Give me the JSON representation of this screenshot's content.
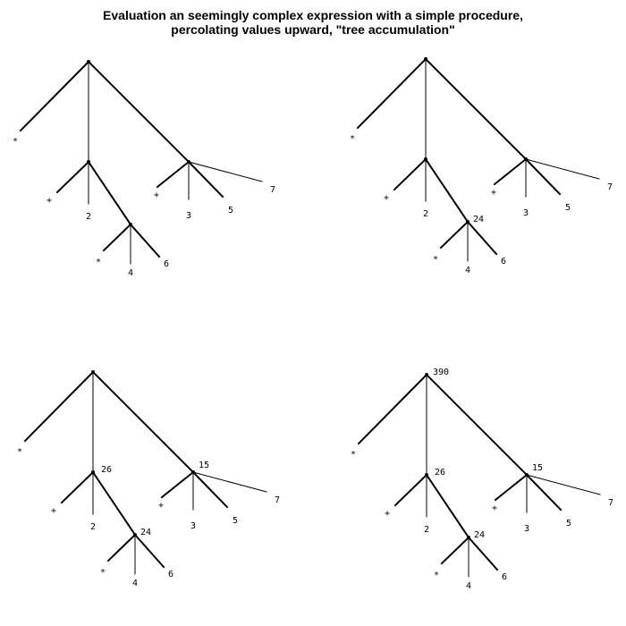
{
  "title": {
    "line1": "Evaluation an seemingly complex expression with a simple procedure,",
    "line2": "percolating values upward, \"tree accumulation\""
  },
  "colors": {
    "ink": "#000000",
    "background": "#ffffff"
  },
  "panels": [
    {
      "step": 1,
      "labels": {
        "root_op": "*",
        "sum1_op": "+",
        "sum1_a": "2",
        "prod_op": "*",
        "prod_a": "4",
        "prod_b": "6",
        "sum2_op": "+",
        "sum2_a": "3",
        "sum2_b": "5",
        "sum2_c": "7"
      },
      "values": {
        "root": "",
        "sum1": "",
        "prod": "",
        "sum2": ""
      }
    },
    {
      "step": 2,
      "labels": {
        "root_op": "*",
        "sum1_op": "+",
        "sum1_a": "2",
        "prod_op": "*",
        "prod_a": "4",
        "prod_b": "6",
        "sum2_op": "+",
        "sum2_a": "3",
        "sum2_b": "5",
        "sum2_c": "7"
      },
      "values": {
        "root": "",
        "sum1": "",
        "prod": "24",
        "sum2": ""
      }
    },
    {
      "step": 3,
      "labels": {
        "root_op": "*",
        "sum1_op": "+",
        "sum1_a": "2",
        "prod_op": "*",
        "prod_a": "4",
        "prod_b": "6",
        "sum2_op": "+",
        "sum2_a": "3",
        "sum2_b": "5",
        "sum2_c": "7"
      },
      "values": {
        "root": "",
        "sum1": "26",
        "prod": "24",
        "sum2": "15"
      }
    },
    {
      "step": 4,
      "labels": {
        "root_op": "*",
        "sum1_op": "+",
        "sum1_a": "2",
        "prod_op": "*",
        "prod_a": "4",
        "prod_b": "6",
        "sum2_op": "+",
        "sum2_a": "3",
        "sum2_b": "5",
        "sum2_c": "7"
      },
      "values": {
        "root": "390",
        "sum1": "26",
        "prod": "24",
        "sum2": "15"
      }
    }
  ]
}
